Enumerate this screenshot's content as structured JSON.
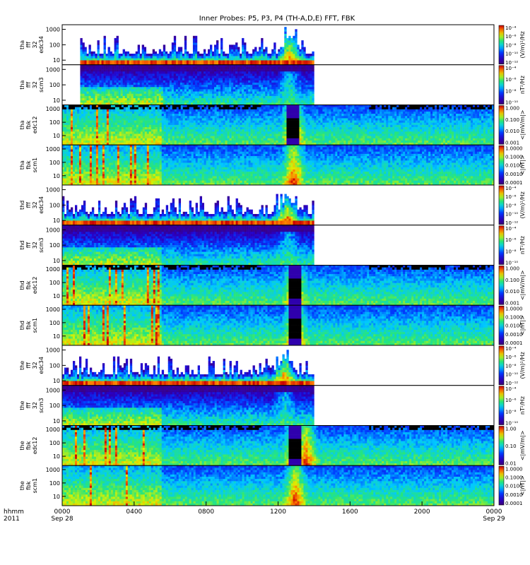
{
  "title": "Inner Probes: P5, P3, P4 (TH-A,D,E) FFT, FBK",
  "colors": {
    "background": "#ffffff",
    "frame": "#000000",
    "empty_fill": "#ffffff"
  },
  "chart_data": {
    "type": "heatmap",
    "title": "Inner Probes: P5, P3, P4 (TH-A,D,E) FFT, FBK",
    "colormap": "rainbow (purple-blue-cyan-green-yellow-red)",
    "x_axis": {
      "row_label_1": "hhmm",
      "row_label_2": "2011",
      "tick_labels": [
        "0000",
        "0400",
        "0800",
        "1200",
        "1600",
        "2000",
        "0000"
      ],
      "date_labels": [
        "Sep 28",
        "",
        "",
        "",
        "",
        "",
        "Sep 29"
      ],
      "xlim": [
        "2011-09-28 00:00",
        "2011-09-29 00:00"
      ]
    },
    "panels": [
      {
        "ylabel": [
          "tha",
          "fff",
          "32",
          "edc34"
        ],
        "yticks": [
          "1000",
          "100",
          "10"
        ],
        "ylim": [
          5,
          2000
        ],
        "yscale": "log",
        "cbar_ticks": [
          "10⁻⁴",
          "10⁻⁶",
          "10⁻⁸",
          "10⁻¹⁰",
          "10⁻¹²"
        ],
        "cbar_label": "(V/m)²/Hz",
        "style": "sparse",
        "data_span_hours": [
          1.0,
          14.0
        ],
        "events": [
          {
            "t_hours": 12.6,
            "kind": "enhancement"
          }
        ]
      },
      {
        "ylabel": [
          "tha",
          "fff",
          "32",
          "scm3"
        ],
        "yticks": [
          "1000",
          "100",
          "10"
        ],
        "ylim": [
          5,
          2000
        ],
        "yscale": "log",
        "cbar_ticks": [
          "10⁻⁴",
          "10⁻⁶",
          "10⁻⁸",
          "10⁻¹⁰"
        ],
        "cbar_label": "nT²/Hz",
        "style": "dense",
        "data_span_hours": [
          1.0,
          14.0
        ],
        "events": [
          {
            "t_hours": 12.6,
            "kind": "enhancement"
          }
        ]
      },
      {
        "ylabel": [
          "tha",
          "fbk",
          "edc12"
        ],
        "yticks": [
          "1000",
          "100",
          "10"
        ],
        "ylim": [
          2,
          2000
        ],
        "yscale": "log",
        "cbar_ticks": [
          "1.000",
          "0.100",
          "0.010",
          "0.001"
        ],
        "cbar_label": "<|mV/m|>",
        "style": "fbk",
        "data_span_hours": [
          0.0,
          24.0
        ],
        "events": [
          {
            "t_hours": 12.8,
            "kind": "dropout"
          }
        ]
      },
      {
        "ylabel": [
          "tha",
          "fbk",
          "scm1"
        ],
        "yticks": [
          "1000",
          "100",
          "10"
        ],
        "ylim": [
          2,
          2000
        ],
        "yscale": "log",
        "cbar_ticks": [
          "1.0000",
          "0.1000",
          "0.0100",
          "0.0010",
          "0.0001"
        ],
        "cbar_label": "<|nT|>",
        "style": "fbk",
        "data_span_hours": [
          0.0,
          24.0
        ],
        "events": [
          {
            "t_hours": 12.8,
            "kind": "enhancement"
          }
        ]
      },
      {
        "ylabel": [
          "thd",
          "fff",
          "32",
          "edc34"
        ],
        "yticks": [
          "1000",
          "100",
          "10"
        ],
        "ylim": [
          5,
          2000
        ],
        "yscale": "log",
        "cbar_ticks": [
          "10⁻⁴",
          "10⁻⁶",
          "10⁻⁸",
          "10⁻¹⁰",
          "10⁻¹²"
        ],
        "cbar_label": "(V/m)²/Hz",
        "style": "sparse",
        "data_span_hours": [
          0.0,
          14.0
        ],
        "events": [
          {
            "t_hours": 12.5,
            "kind": "enhancement"
          }
        ]
      },
      {
        "ylabel": [
          "thd",
          "fff",
          "32",
          "scm3"
        ],
        "yticks": [
          "1000",
          "100",
          "10"
        ],
        "ylim": [
          5,
          2000
        ],
        "yscale": "log",
        "cbar_ticks": [
          "10⁻⁴",
          "10⁻⁶",
          "10⁻⁸",
          "10⁻¹⁰"
        ],
        "cbar_label": "nT²/Hz",
        "style": "dense",
        "data_span_hours": [
          0.0,
          14.0
        ],
        "events": [
          {
            "t_hours": 12.5,
            "kind": "enhancement"
          }
        ]
      },
      {
        "ylabel": [
          "thd",
          "fbk",
          "edc12"
        ],
        "yticks": [
          "1000",
          "100",
          "10"
        ],
        "ylim": [
          2,
          2000
        ],
        "yscale": "log",
        "cbar_ticks": [
          "1.000",
          "0.100",
          "0.010",
          "0.001"
        ],
        "cbar_label": "<|mV/m|>",
        "style": "fbk",
        "data_span_hours": [
          0.0,
          24.0
        ],
        "events": [
          {
            "t_hours": 12.9,
            "kind": "dropout"
          }
        ]
      },
      {
        "ylabel": [
          "thd",
          "fbk",
          "scm1"
        ],
        "yticks": [
          "1000",
          "100",
          "10"
        ],
        "ylim": [
          2,
          2000
        ],
        "yscale": "log",
        "cbar_ticks": [
          "1.0000",
          "0.1000",
          "0.0100",
          "0.0010",
          "0.0001"
        ],
        "cbar_label": "<|nT|>",
        "style": "fbk",
        "data_span_hours": [
          0.0,
          24.0
        ],
        "events": [
          {
            "t_hours": 12.9,
            "kind": "dropout"
          }
        ]
      },
      {
        "ylabel": [
          "the",
          "fff",
          "32",
          "edc34"
        ],
        "yticks": [
          "1000",
          "100",
          "10"
        ],
        "ylim": [
          5,
          2000
        ],
        "yscale": "log",
        "cbar_ticks": [
          "10⁻⁴",
          "10⁻⁶",
          "10⁻⁸",
          "10⁻¹⁰",
          "10⁻¹²"
        ],
        "cbar_label": "(V/m)²/Hz",
        "style": "sparse",
        "data_span_hours": [
          0.0,
          14.0
        ],
        "events": [
          {
            "t_hours": 12.3,
            "kind": "enhancement"
          }
        ]
      },
      {
        "ylabel": [
          "the",
          "fff",
          "32",
          "scm3"
        ],
        "yticks": [
          "1000",
          "100",
          "10"
        ],
        "ylim": [
          5,
          2000
        ],
        "yscale": "log",
        "cbar_ticks": [
          "10⁻⁴",
          "10⁻⁶",
          "10⁻⁸",
          "10⁻¹⁰"
        ],
        "cbar_label": "nT²/Hz",
        "style": "dense",
        "data_span_hours": [
          0.0,
          14.0
        ],
        "events": [
          {
            "t_hours": 12.3,
            "kind": "enhancement"
          }
        ]
      },
      {
        "ylabel": [
          "the",
          "fbk",
          "edc12"
        ],
        "yticks": [
          "1000",
          "100",
          "10"
        ],
        "ylim": [
          2,
          2000
        ],
        "yscale": "log",
        "cbar_ticks": [
          "1.00",
          "0.10",
          "0.01"
        ],
        "cbar_label": "<|mV/m|>",
        "style": "fbk",
        "data_span_hours": [
          0.0,
          24.0
        ],
        "events": [
          {
            "t_hours": 12.9,
            "kind": "dropout"
          },
          {
            "t_hours": 13.5,
            "kind": "enhancement"
          }
        ]
      },
      {
        "ylabel": [
          "the",
          "fbk",
          "scm1"
        ],
        "yticks": [
          "1000",
          "100",
          "10"
        ],
        "ylim": [
          2,
          2000
        ],
        "yscale": "log",
        "cbar_ticks": [
          "1.0000",
          "0.1000",
          "0.0100",
          "0.0010",
          "0.0001"
        ],
        "cbar_label": "<|nT|>",
        "style": "fbk",
        "data_span_hours": [
          0.0,
          24.0
        ],
        "events": [
          {
            "t_hours": 12.9,
            "kind": "enhancement"
          }
        ]
      }
    ]
  }
}
